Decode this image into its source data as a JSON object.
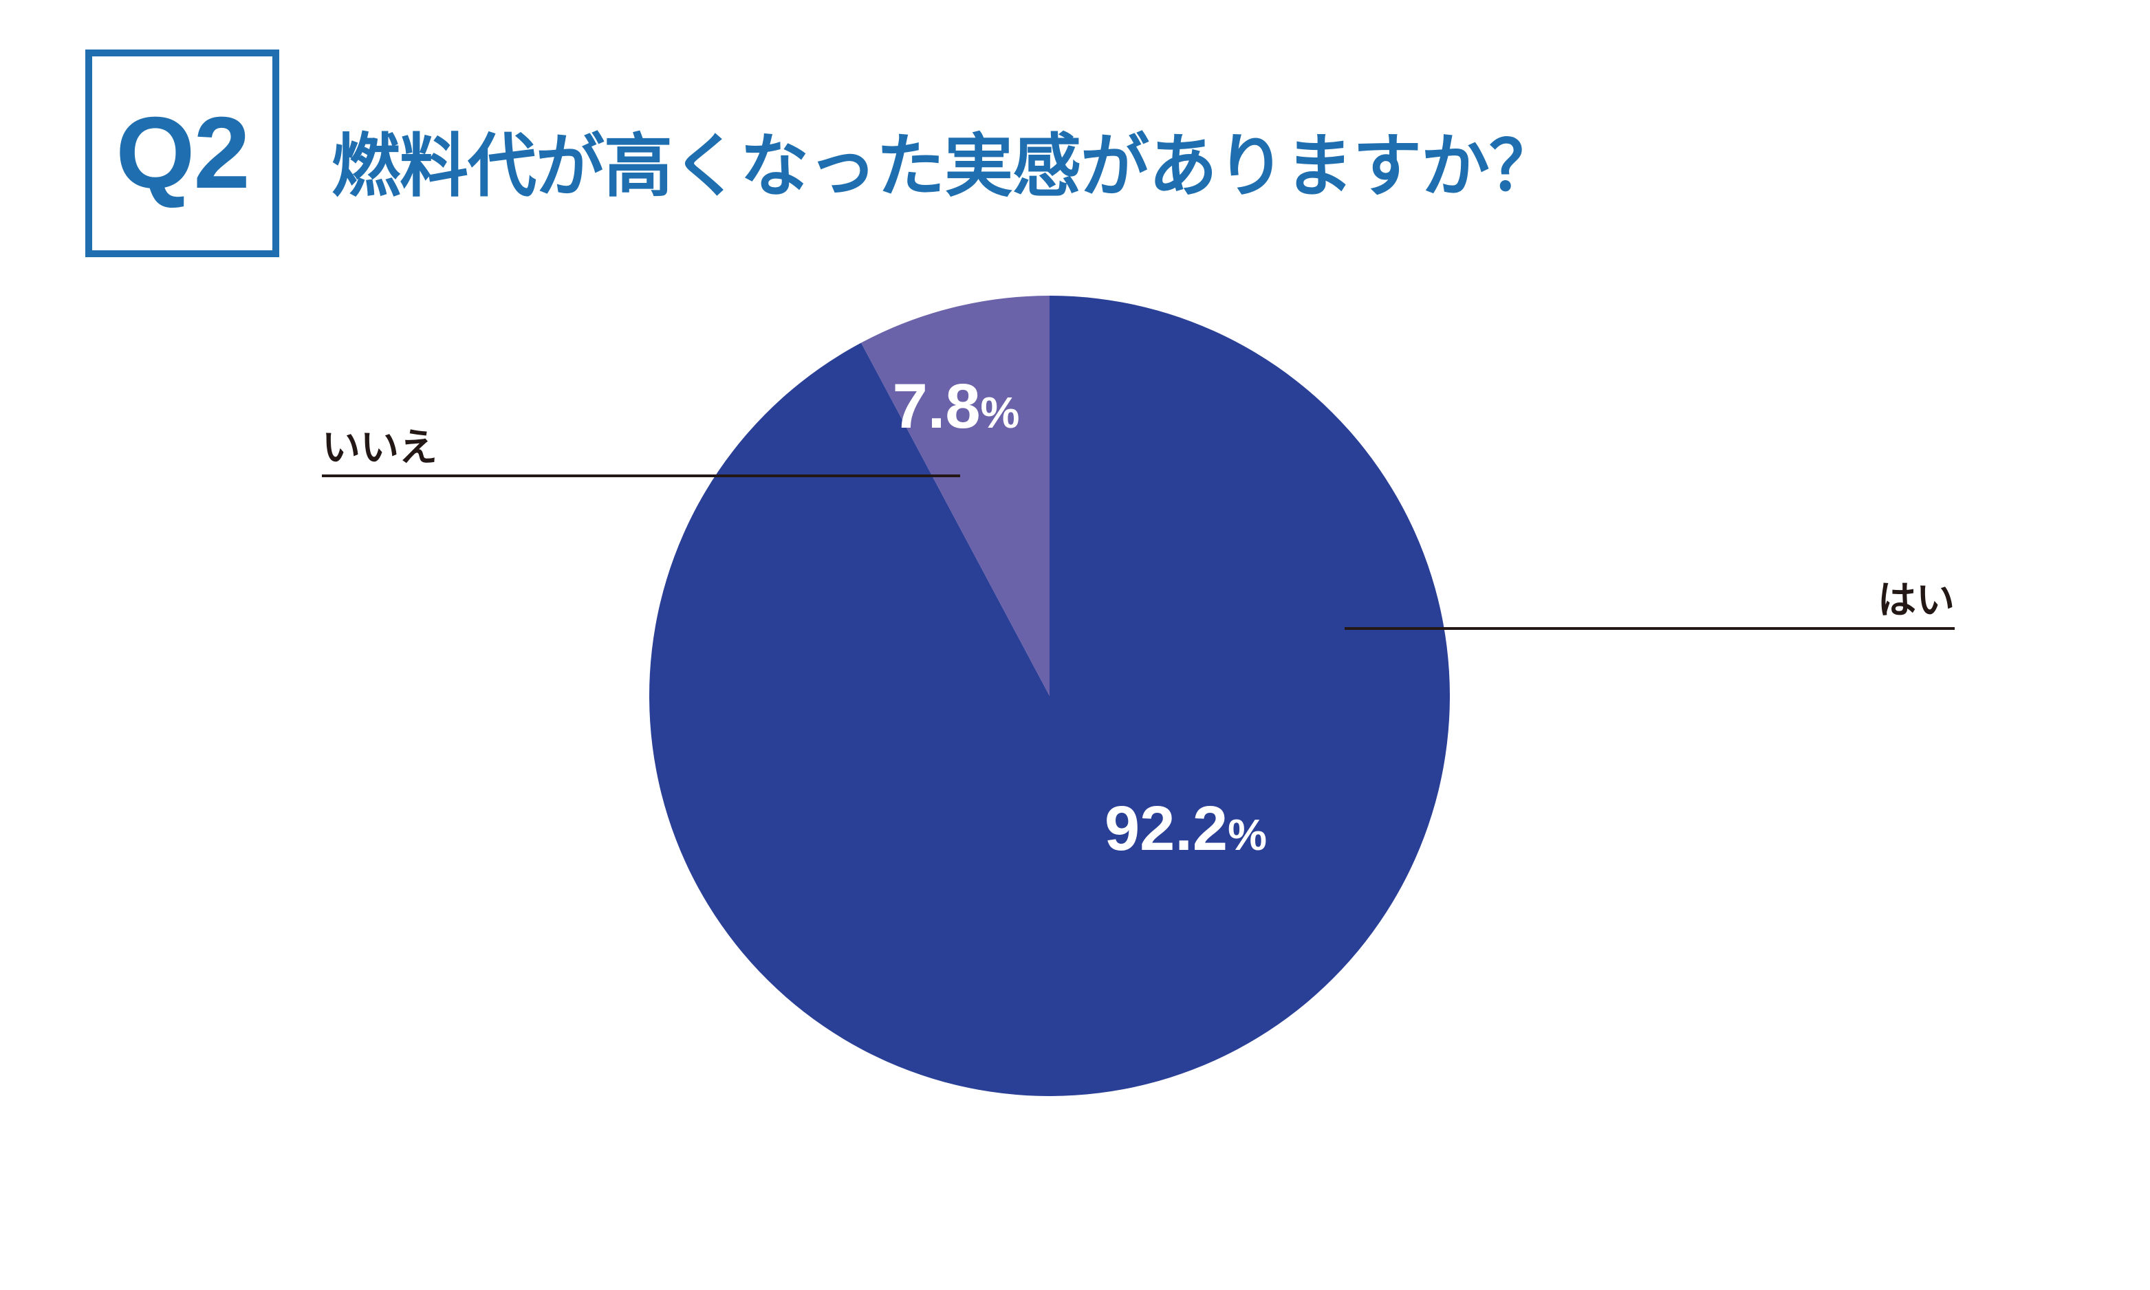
{
  "header": {
    "question_number": "Q2",
    "title": "燃料代が高くなった実感がありますか？"
  },
  "chart_data": {
    "type": "pie",
    "categories": [
      "はい",
      "いいえ"
    ],
    "values": [
      92.2,
      7.8
    ],
    "value_labels": [
      "92.2",
      "7.8"
    ],
    "unit": "%",
    "start_angle": "12 o'clock",
    "direction": "clockwise",
    "colors": [
      "#2a3f96",
      "#6a63aa"
    ],
    "label_color": "#ffffff",
    "leader_line_color": "#231815"
  },
  "theme": {
    "accent": "#1f6fb0"
  }
}
